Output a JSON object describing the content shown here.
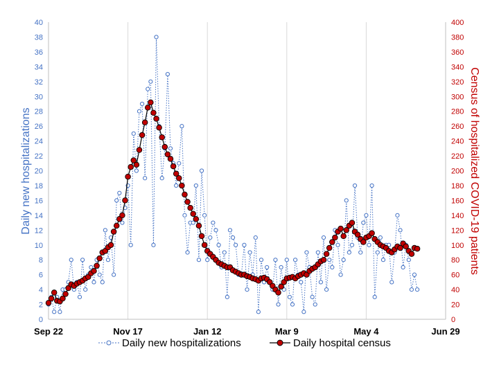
{
  "chart_data": {
    "type": "line",
    "x_ticks": [
      "Sep 22",
      "Nov 17",
      "Jan 12",
      "Mar 9",
      "May 4",
      "Jun 29"
    ],
    "x_range": [
      0,
      280
    ],
    "left_axis": {
      "label": "Daily new hospitalizations",
      "ylim": [
        0,
        40
      ],
      "step": 2,
      "color": "#4472c4"
    },
    "right_axis": {
      "label": "Census of hospitalized COVID-19 patients",
      "ylim": [
        0,
        400
      ],
      "step": 20,
      "color": "#c00000"
    },
    "grid": "vertical",
    "legend_position": "bottom",
    "series": [
      {
        "name": "Daily new hospitalizations",
        "axis": "left",
        "style": "dotted-line-hollow-markers",
        "color": "#4472c4",
        "x": [
          0,
          2,
          4,
          6,
          8,
          10,
          12,
          14,
          16,
          18,
          20,
          22,
          24,
          26,
          28,
          30,
          32,
          34,
          36,
          38,
          40,
          42,
          44,
          46,
          48,
          50,
          52,
          54,
          56,
          58,
          60,
          62,
          64,
          66,
          68,
          70,
          72,
          74,
          76,
          78,
          80,
          82,
          84,
          86,
          88,
          90,
          92,
          94,
          96,
          98,
          100,
          102,
          104,
          106,
          108,
          110,
          112,
          114,
          116,
          118,
          120,
          122,
          124,
          126,
          128,
          130,
          132,
          134,
          136,
          138,
          140,
          142,
          144,
          146,
          148,
          150,
          152,
          154,
          156,
          158,
          160,
          162,
          164,
          166,
          168,
          170,
          172,
          174,
          176,
          178,
          180,
          182,
          184,
          186,
          188,
          190,
          192,
          194,
          196,
          198,
          200,
          202,
          204,
          206,
          208,
          210,
          212,
          214,
          216,
          218,
          220,
          222,
          224,
          226,
          228,
          230,
          232,
          234,
          236,
          238,
          240,
          242,
          244,
          246,
          248,
          250,
          252,
          254,
          256,
          258,
          260
        ],
        "y": [
          2,
          3,
          1,
          3,
          1,
          4,
          4,
          5,
          8,
          4,
          5,
          3,
          8,
          4,
          6,
          7,
          5,
          8,
          6,
          5,
          12,
          8,
          11,
          6,
          16,
          17,
          13,
          15,
          18,
          10,
          25,
          20,
          28,
          29,
          19,
          31,
          32,
          10,
          38,
          26,
          19,
          23,
          33,
          23,
          21,
          18,
          21,
          26,
          14,
          9,
          13,
          13,
          18,
          8,
          20,
          14,
          8,
          11,
          13,
          12,
          10,
          7,
          9,
          3,
          12,
          11,
          10,
          6,
          6,
          10,
          4,
          9,
          6,
          11,
          1,
          8,
          5,
          7,
          5,
          4,
          8,
          2,
          7,
          4,
          8,
          3,
          2,
          8,
          6,
          5,
          1,
          9,
          7,
          3,
          2,
          9,
          5,
          11,
          4,
          8,
          7,
          12,
          10,
          6,
          8,
          16,
          9,
          10,
          18,
          11,
          9,
          13,
          14,
          10,
          18,
          3,
          9,
          11,
          8,
          10,
          10,
          5,
          9,
          14,
          12,
          7,
          10,
          8,
          4,
          6,
          4
        ]
      },
      {
        "name": "Daily hospital census",
        "axis": "right",
        "style": "line-filled-markers",
        "color": "#c00000",
        "x": [
          0,
          2,
          4,
          6,
          8,
          10,
          12,
          14,
          16,
          18,
          20,
          22,
          24,
          26,
          28,
          30,
          32,
          34,
          36,
          38,
          40,
          42,
          44,
          46,
          48,
          50,
          52,
          54,
          56,
          58,
          60,
          62,
          64,
          66,
          68,
          70,
          72,
          74,
          76,
          78,
          80,
          82,
          84,
          86,
          88,
          90,
          92,
          94,
          96,
          98,
          100,
          102,
          104,
          106,
          108,
          110,
          112,
          114,
          116,
          118,
          120,
          122,
          124,
          126,
          128,
          130,
          132,
          134,
          136,
          138,
          140,
          142,
          144,
          146,
          148,
          150,
          152,
          154,
          156,
          158,
          160,
          162,
          164,
          166,
          168,
          170,
          172,
          174,
          176,
          178,
          180,
          182,
          184,
          186,
          188,
          190,
          192,
          194,
          196,
          198,
          200,
          202,
          204,
          206,
          208,
          210,
          212,
          214,
          216,
          218,
          220,
          222,
          224,
          226,
          228,
          230,
          232,
          234,
          236,
          238,
          240,
          242,
          244,
          246,
          248,
          250,
          252,
          254,
          256,
          258,
          260
        ],
        "y": [
          22,
          28,
          36,
          25,
          24,
          28,
          34,
          42,
          47,
          45,
          48,
          50,
          52,
          55,
          57,
          62,
          65,
          72,
          82,
          90,
          92,
          97,
          100,
          118,
          126,
          135,
          140,
          160,
          192,
          205,
          214,
          208,
          228,
          248,
          265,
          285,
          292,
          278,
          270,
          258,
          245,
          232,
          222,
          216,
          206,
          196,
          190,
          180,
          168,
          158,
          150,
          142,
          135,
          126,
          112,
          100,
          92,
          88,
          84,
          80,
          76,
          74,
          72,
          70,
          70,
          66,
          64,
          62,
          60,
          60,
          58,
          57,
          55,
          54,
          52,
          55,
          56,
          54,
          50,
          45,
          40,
          36,
          44,
          50,
          55,
          56,
          57,
          55,
          58,
          60,
          62,
          60,
          65,
          68,
          70,
          74,
          78,
          80,
          88,
          96,
          104,
          110,
          118,
          122,
          112,
          120,
          126,
          130,
          118,
          114,
          108,
          104,
          110,
          112,
          116,
          108,
          104,
          100,
          98,
          96,
          92,
          90,
          94,
          98,
          96,
          102,
          98,
          92,
          88,
          96,
          95
        ]
      }
    ]
  }
}
